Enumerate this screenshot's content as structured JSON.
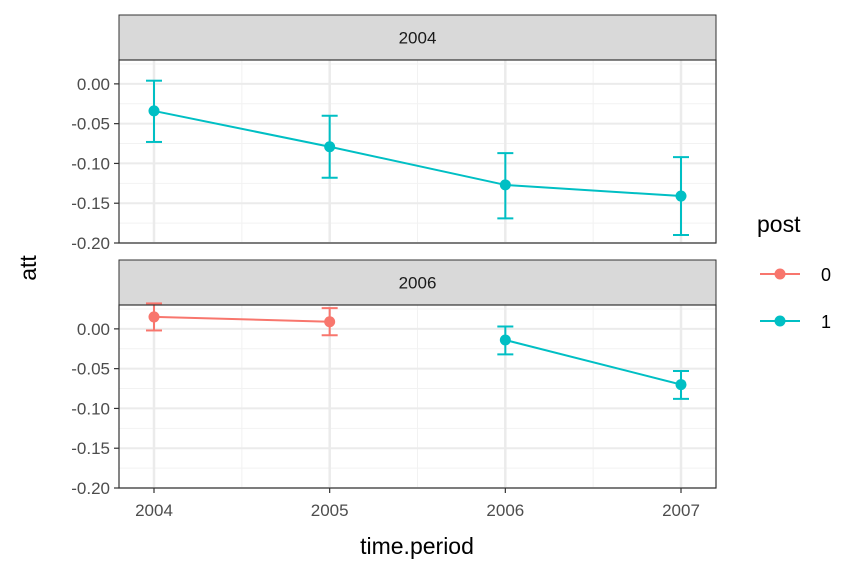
{
  "chart_data": {
    "type": "line",
    "title": "",
    "xlabel": "time.period",
    "ylabel": "att",
    "x_ticks": [
      "2004",
      "2005",
      "2006",
      "2007"
    ],
    "y_ticks": [
      "0.00",
      "-0.05",
      "-0.10",
      "-0.15",
      "-0.20"
    ],
    "ylim": [
      -0.2,
      0.03
    ],
    "grid": true,
    "legend": {
      "title": "post",
      "placement": "right",
      "entries": [
        {
          "label": "0",
          "color": "#F8766D"
        },
        {
          "label": "1",
          "color": "#00BFC4"
        }
      ]
    },
    "panels": [
      {
        "label": "2004",
        "points": [
          {
            "x": 2004,
            "y": -0.034,
            "lower": -0.073,
            "upper": 0.004,
            "post": "1"
          },
          {
            "x": 2005,
            "y": -0.079,
            "lower": -0.118,
            "upper": -0.04,
            "post": "1"
          },
          {
            "x": 2006,
            "y": -0.127,
            "lower": -0.169,
            "upper": -0.087,
            "post": "1"
          },
          {
            "x": 2007,
            "y": -0.141,
            "lower": -0.19,
            "upper": -0.092,
            "post": "1"
          }
        ]
      },
      {
        "label": "2006",
        "points": [
          {
            "x": 2004,
            "y": 0.015,
            "lower": -0.002,
            "upper": 0.032,
            "post": "0"
          },
          {
            "x": 2005,
            "y": 0.009,
            "lower": -0.008,
            "upper": 0.026,
            "post": "0"
          },
          {
            "x": 2006,
            "y": -0.014,
            "lower": -0.032,
            "upper": 0.003,
            "post": "1"
          },
          {
            "x": 2007,
            "y": -0.07,
            "lower": -0.088,
            "upper": -0.053,
            "post": "1"
          }
        ]
      }
    ]
  }
}
